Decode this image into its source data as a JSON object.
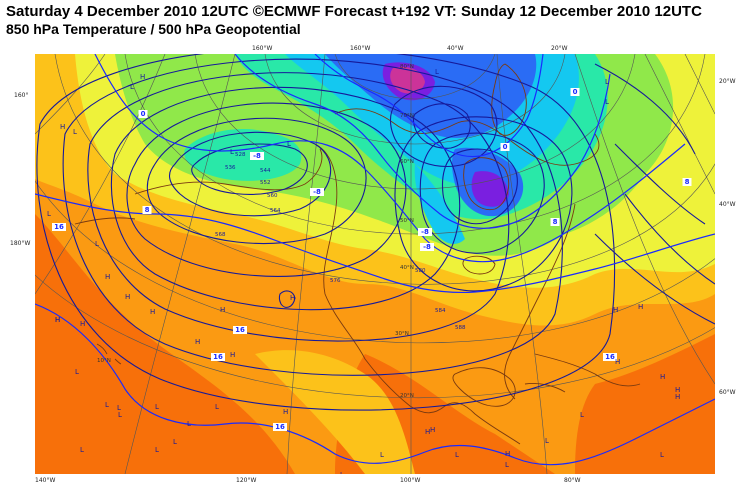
{
  "header": {
    "line1": "Saturday 4 December 2010 12UTC ©ECMWF Forecast t+192 VT: Sunday 12 December 2010 12UTC",
    "line2": "850 hPa Temperature / 500 hPa Geopotential"
  },
  "colors": {
    "t_below_minus_24": "#cc3399",
    "t_minus_24_minus_16": "#7a1fe0",
    "t_minus_16_minus_8": "#2a6cf5",
    "t_minus_8_0": "#14c8f0",
    "t_0_8": "#29e8a8",
    "t_8_12": "#90e84a",
    "t_12_16": "#eef23a",
    "t_16_20": "#fcc21a",
    "t_20_24": "#fb9a12",
    "t_above_24": "#f7700a",
    "hot_spot": "#ee2a2a",
    "geopotential_contours": "#161a9a",
    "isotherm_labels": "#1a2aff",
    "coastline": "#7a3a10",
    "graticule": "#555555"
  },
  "edge_labels": {
    "top": [
      "160°W",
      "160°W",
      "40°W",
      "20°W"
    ],
    "bottom": [
      "140°W",
      "120°W",
      "100°W",
      "80°W"
    ],
    "left": [
      "160°",
      "180°W"
    ],
    "right": [
      "20°W",
      "40°W",
      "60°W"
    ],
    "interior": [
      "10°N",
      "20°N",
      "30°N",
      "40°N",
      "50°N",
      "60°N",
      "70°N",
      "80°N"
    ]
  },
  "geopotential_labels": [
    "528",
    "536",
    "544",
    "552",
    "560",
    "564",
    "568",
    "576",
    "580",
    "584",
    "588"
  ],
  "temperature_labels": [
    "-8",
    "-8",
    "-8",
    "-8",
    "0",
    "0",
    "0",
    "8",
    "8",
    "8",
    "16",
    "16",
    "16",
    "16",
    "16"
  ],
  "pressure_centres": {
    "high": "H",
    "low": "L",
    "high_count": 22,
    "low_count": 26
  }
}
